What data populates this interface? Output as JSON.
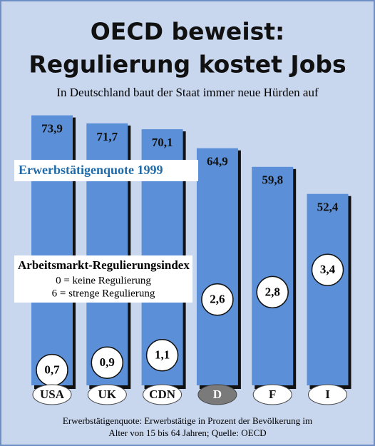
{
  "chart_data": {
    "type": "bar",
    "title": [
      "OECD beweist:",
      "Regulierung kostet Jobs"
    ],
    "subtitle": "In Deutschland baut der Staat immer neue Hürden auf",
    "categories": [
      "USA",
      "UK",
      "CDN",
      "D",
      "F",
      "I"
    ],
    "series": [
      {
        "name": "Erwerbstätigenquote 1999",
        "color": "#5b8fd8",
        "values": [
          73.9,
          71.7,
          70.1,
          64.9,
          59.8,
          52.4
        ],
        "value_labels": [
          "73,9",
          "71,7",
          "70,1",
          "64,9",
          "59,8",
          "52,4"
        ]
      },
      {
        "name": "Arbeitsmarkt-Regulierungsindex",
        "color": "#ffffff",
        "values": [
          0.7,
          0.9,
          1.1,
          2.6,
          2.8,
          3.4
        ],
        "value_labels": [
          "0,7",
          "0,9",
          "1,1",
          "2,6",
          "2,8",
          "3,4"
        ],
        "notes": [
          "0 = keine Regulierung",
          "6 = strenge Regulierung"
        ]
      }
    ],
    "highlight_category": "D",
    "footnote": [
      "Erwerbstätigenquote: Erwerbstätige in Prozent der Bevölkerung im",
      "Alter von 15 bis 64 Jahren; Quelle: OECD"
    ]
  }
}
